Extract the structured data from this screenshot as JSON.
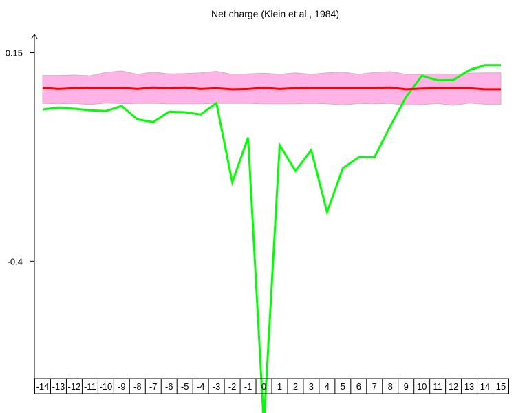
{
  "chart_data": {
    "type": "line",
    "title": "Net charge (Klein et al., 1984)",
    "xlabel": "",
    "ylabel": "",
    "x": [
      -14,
      -13,
      -12,
      -11,
      -10,
      -9,
      -8,
      -7,
      -6,
      -5,
      -4,
      -3,
      -2,
      -1,
      0,
      1,
      2,
      3,
      4,
      5,
      6,
      7,
      8,
      9,
      10,
      11,
      12,
      13,
      14,
      15
    ],
    "x_tick_labels": [
      "-14",
      "-13",
      "-12",
      "-11",
      "-10",
      "-9",
      "-8",
      "-7",
      "-6",
      "-5",
      "-4",
      "-3",
      "-2",
      "-1",
      "0",
      "1",
      "2",
      "3",
      "4",
      "5",
      "6",
      "7",
      "8",
      "9",
      "10",
      "11",
      "12",
      "13",
      "14",
      "15"
    ],
    "y_ticks": [
      0.15,
      -0.4
    ],
    "y_tick_labels": [
      "0.15",
      "-0.4"
    ],
    "ylim": [
      -0.71,
      0.18
    ],
    "grid": false,
    "series": [
      {
        "color": "#00ff00",
        "values": [
          0.0,
          0.005,
          0.002,
          -0.002,
          -0.004,
          0.009,
          -0.026,
          -0.033,
          -0.006,
          -0.007,
          -0.013,
          0.017,
          -0.192,
          -0.074,
          -0.832,
          -0.094,
          -0.162,
          -0.107,
          -0.271,
          -0.155,
          -0.126,
          -0.126,
          -0.044,
          0.033,
          0.089,
          0.077,
          0.078,
          0.104,
          0.117,
          0.117
        ]
      },
      {
        "color": "#ff0000",
        "values": [
          0.057,
          0.054,
          0.056,
          0.057,
          0.057,
          0.057,
          0.054,
          0.058,
          0.056,
          0.058,
          0.054,
          0.056,
          0.053,
          0.054,
          0.057,
          0.054,
          0.056,
          0.057,
          0.057,
          0.057,
          0.057,
          0.057,
          0.058,
          0.053,
          0.055,
          0.056,
          0.056,
          0.056,
          0.053,
          0.053
        ]
      }
    ],
    "band": {
      "color": "#ffb3e6",
      "upper": [
        0.09,
        0.09,
        0.091,
        0.089,
        0.098,
        0.102,
        0.093,
        0.099,
        0.094,
        0.095,
        0.097,
        0.101,
        0.093,
        0.094,
        0.096,
        0.093,
        0.097,
        0.093,
        0.097,
        0.099,
        0.093,
        0.098,
        0.1,
        0.093,
        0.093,
        0.094,
        0.093,
        0.096,
        0.097,
        0.097
      ],
      "lower": [
        0.016,
        0.015,
        0.016,
        0.013,
        0.017,
        0.015,
        0.016,
        0.016,
        0.015,
        0.015,
        0.015,
        0.016,
        0.016,
        0.016,
        0.015,
        0.015,
        0.015,
        0.016,
        0.015,
        0.012,
        0.016,
        0.015,
        0.016,
        0.012,
        0.013,
        0.016,
        0.011,
        0.017,
        0.014,
        0.014
      ]
    }
  }
}
